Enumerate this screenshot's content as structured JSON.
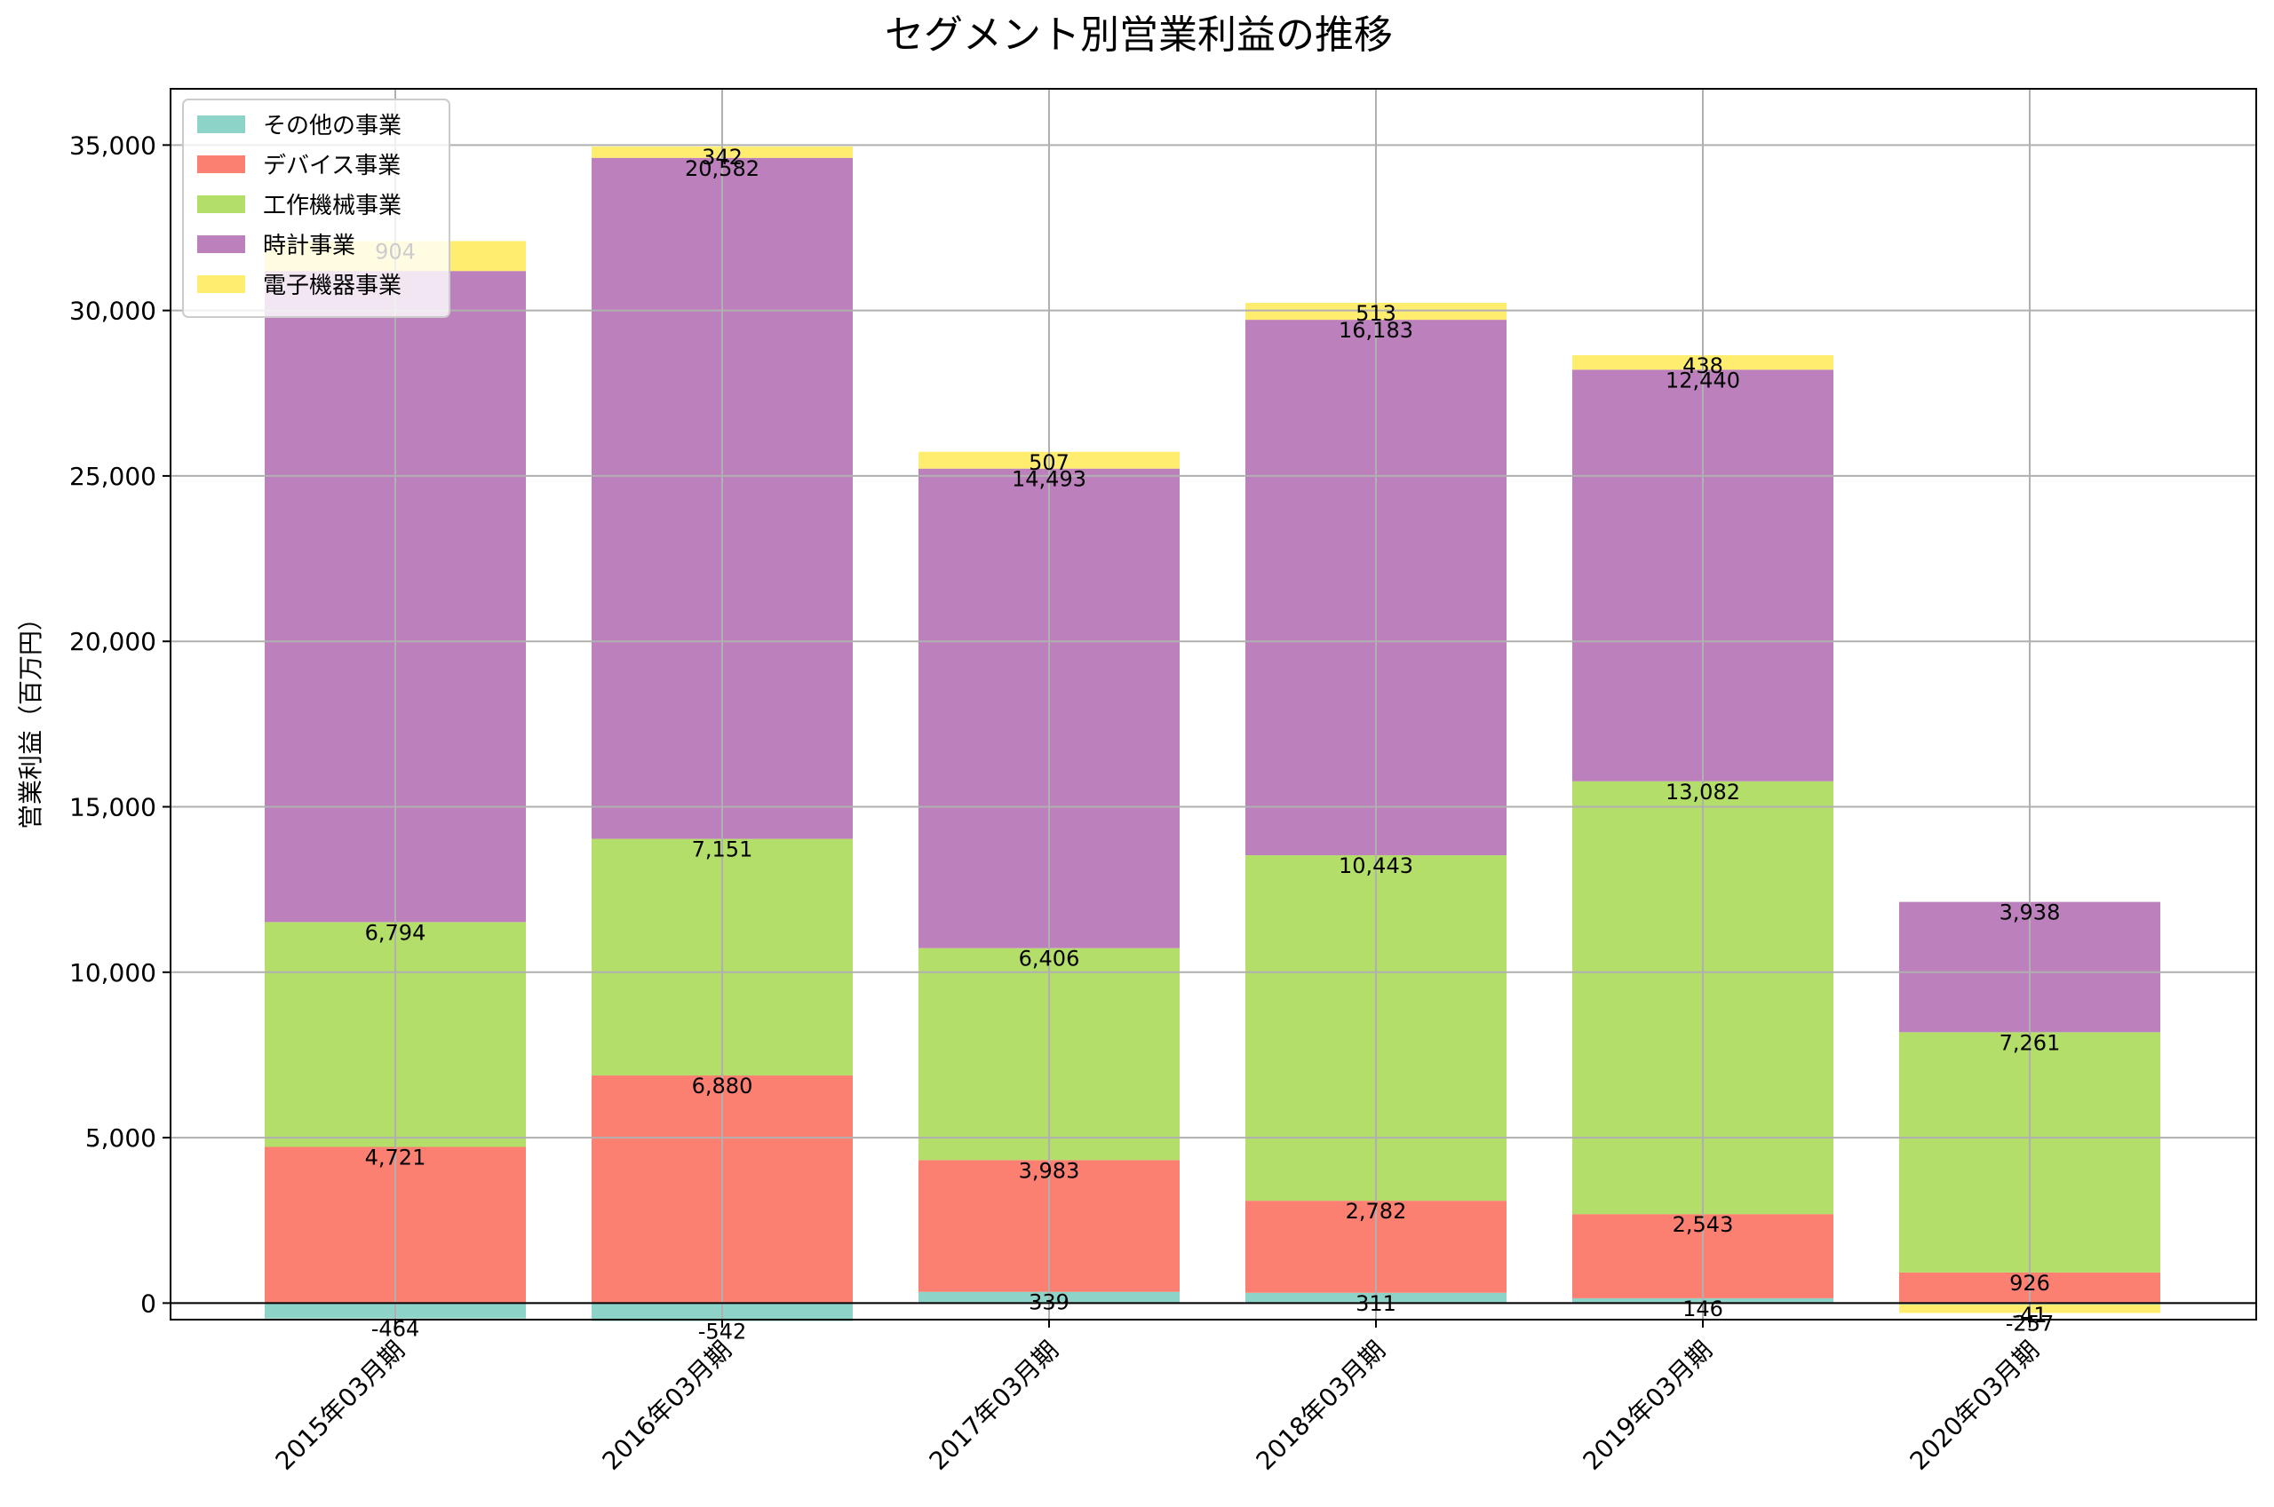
{
  "chart_data": {
    "type": "bar",
    "stacked": true,
    "title": "セグメント別営業利益の推移",
    "xlabel": "",
    "ylabel": "営業利益（百万円）",
    "ylim": [
      -500,
      36700
    ],
    "yticks": [
      0,
      5000,
      10000,
      15000,
      20000,
      25000,
      30000,
      35000
    ],
    "ytick_labels": [
      "0",
      "5,000",
      "10,000",
      "15,000",
      "20,000",
      "25,000",
      "30,000",
      "35,000"
    ],
    "categories": [
      "2015年03月期",
      "2016年03月期",
      "2017年03月期",
      "2018年03月期",
      "2019年03月期",
      "2020年03月期"
    ],
    "grid": true,
    "legend_position": "top-left",
    "series": [
      {
        "name": "その他の事業",
        "color": "#8dd3c7",
        "values": [
          -464,
          -542,
          339,
          311,
          146,
          -41
        ],
        "labels": [
          "-464",
          "-542",
          "339",
          "311",
          "146",
          "-41"
        ]
      },
      {
        "name": "デバイス事業",
        "color": "#fb8072",
        "values": [
          4721,
          6880,
          3983,
          2782,
          2543,
          926
        ],
        "labels": [
          "4,721",
          "6,880",
          "3,983",
          "2,782",
          "2,543",
          "926"
        ]
      },
      {
        "name": "工作機械事業",
        "color": "#b3de69",
        "values": [
          6794,
          7151,
          6406,
          10443,
          13082,
          7261
        ],
        "labels": [
          "6,794",
          "7,151",
          "6,406",
          "10,443",
          "13,082",
          "7,261"
        ]
      },
      {
        "name": "時計事業",
        "color": "#bc80bd",
        "values": [
          19678,
          20582,
          14493,
          16183,
          12440,
          3938
        ],
        "labels": [
          "",
          "20,582",
          "14,493",
          "16,183",
          "12,440",
          "3,938"
        ]
      },
      {
        "name": "電子機器事業",
        "color": "#ffed6f",
        "values": [
          904,
          342,
          507,
          513,
          438,
          -257
        ],
        "labels": [
          "904",
          "342",
          "507",
          "513",
          "438",
          "-257"
        ]
      }
    ]
  }
}
